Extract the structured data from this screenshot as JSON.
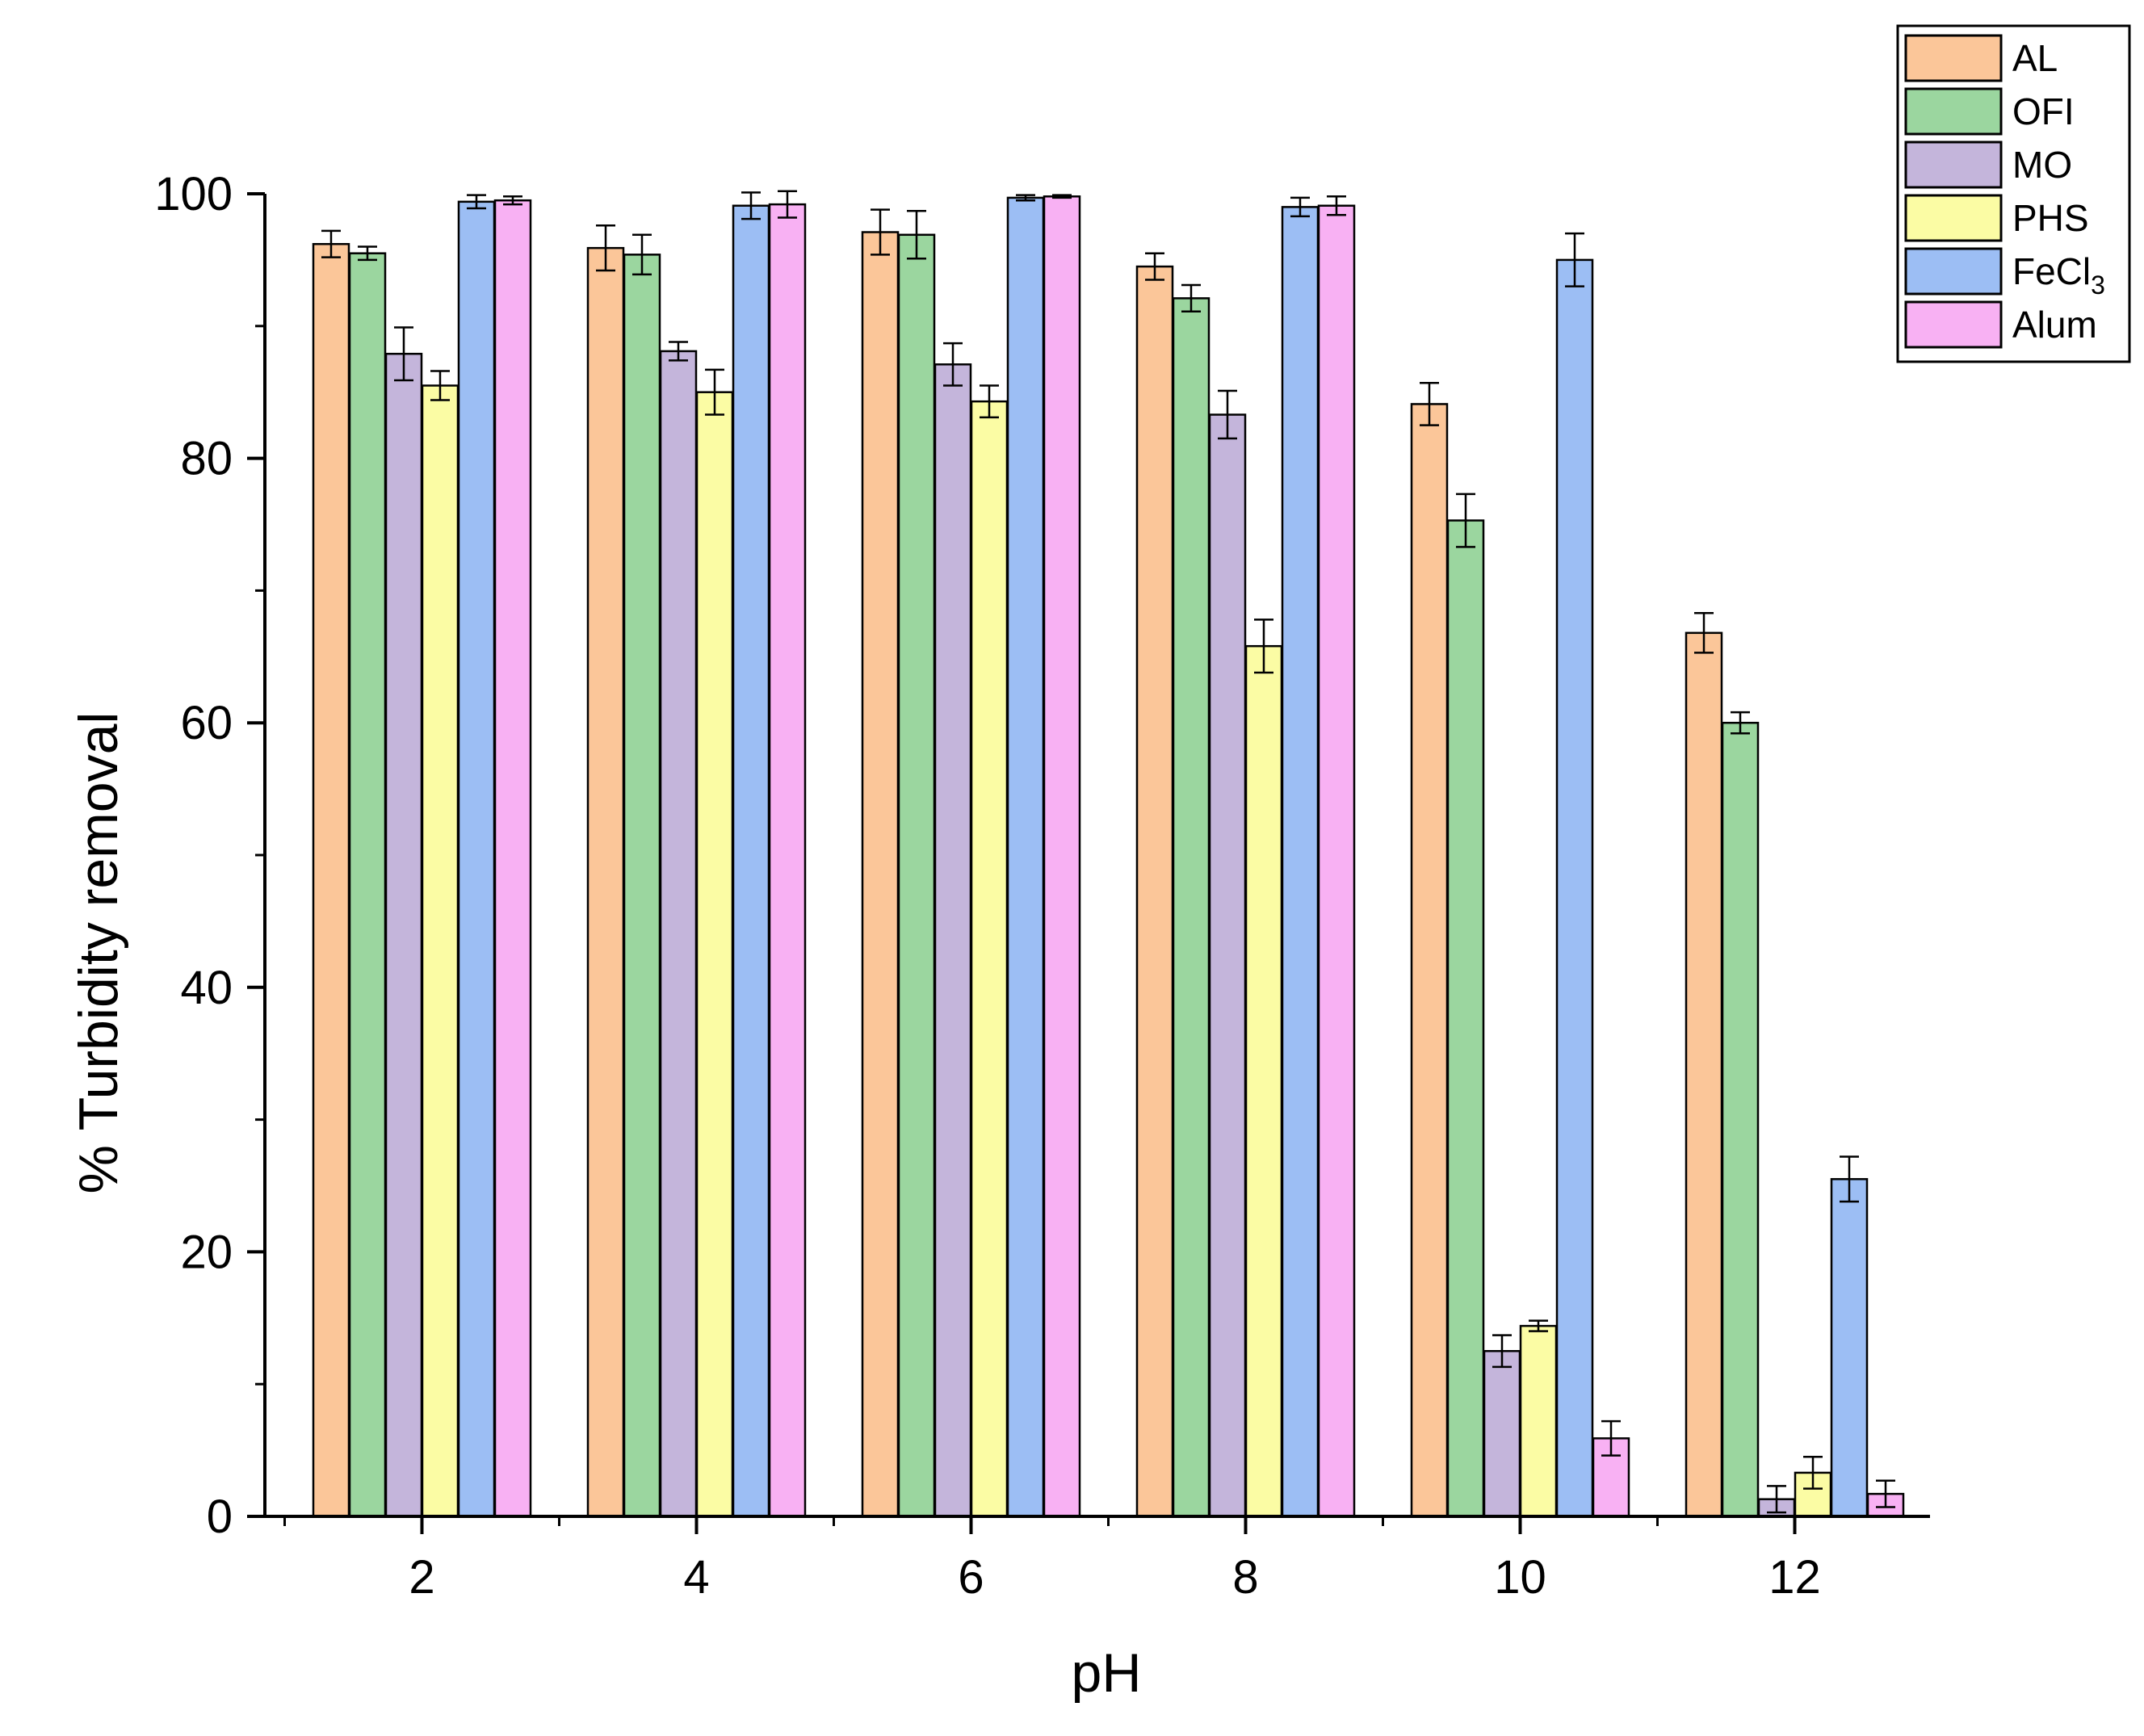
{
  "chart_data": {
    "type": "bar",
    "xlabel": "pH",
    "ylabel": "% Turbidity removal",
    "ylim": [
      0,
      100
    ],
    "yticks": [
      "0",
      "20",
      "40",
      "60",
      "80",
      "100"
    ],
    "categories": [
      "2",
      "4",
      "6",
      "8",
      "10",
      "12"
    ],
    "legend_position": "top-right",
    "series": [
      {
        "name": "AL",
        "color": "#fbc699",
        "values": [
          96.2,
          95.9,
          97.1,
          94.5,
          84.1,
          66.8
        ],
        "errors": [
          1.0,
          1.7,
          1.7,
          1.0,
          1.6,
          1.5
        ]
      },
      {
        "name": "OFI",
        "color": "#9bd69f",
        "values": [
          95.5,
          95.4,
          96.9,
          92.1,
          75.3,
          60.0
        ],
        "errors": [
          0.5,
          1.5,
          1.8,
          1.0,
          2.0,
          0.8
        ]
      },
      {
        "name": "MO",
        "color": "#c4b5db",
        "values": [
          87.9,
          88.1,
          87.1,
          83.3,
          12.5,
          1.3
        ],
        "errors": [
          2.0,
          0.7,
          1.6,
          1.8,
          1.2,
          1.0
        ]
      },
      {
        "name": "PHS",
        "color": "#fbfca4",
        "values": [
          85.5,
          85.0,
          84.3,
          65.8,
          14.4,
          3.3
        ],
        "errors": [
          1.1,
          1.7,
          1.2,
          2.0,
          0.4,
          1.2
        ]
      },
      {
        "name": "FeCl3",
        "color": "#9cbef4",
        "values": [
          99.4,
          99.1,
          99.7,
          99.0,
          95.0,
          25.5
        ],
        "errors": [
          0.5,
          1.0,
          0.2,
          0.7,
          2.0,
          1.7
        ]
      },
      {
        "name": "Alum",
        "color": "#f8b1f3",
        "values": [
          99.5,
          99.2,
          99.8,
          99.1,
          5.9,
          1.7
        ],
        "errors": [
          0.3,
          1.0,
          0.1,
          0.7,
          1.3,
          1.0
        ]
      }
    ]
  }
}
